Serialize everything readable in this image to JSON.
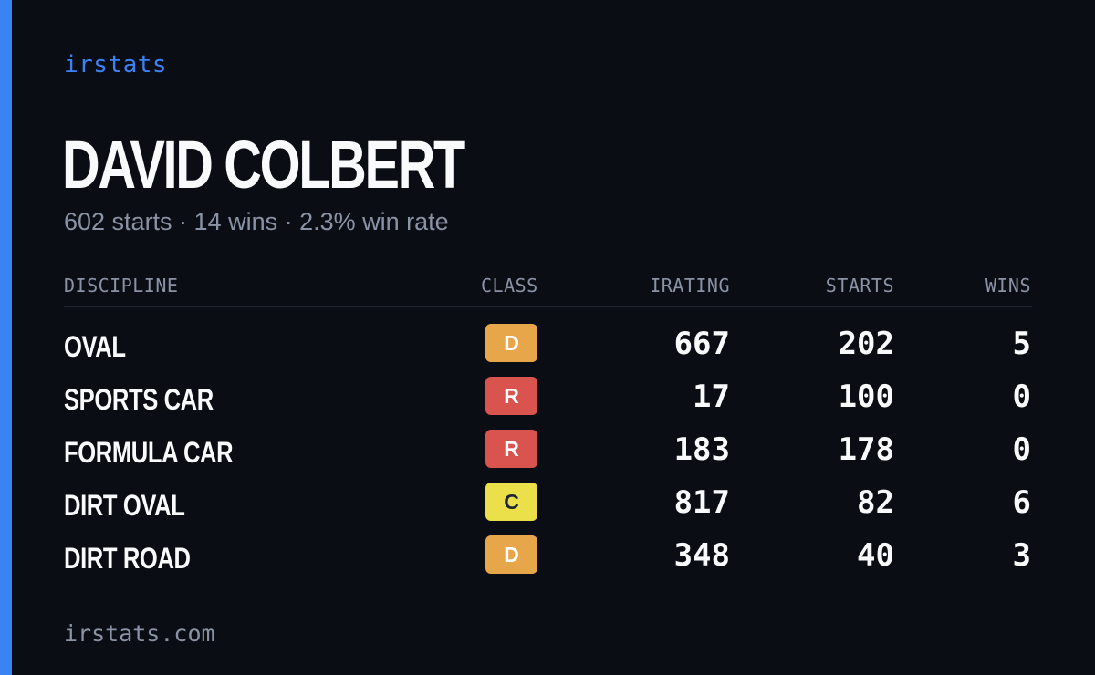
{
  "brand": "irstats",
  "driver": {
    "name": "DAVID COLBERT",
    "summary": "602 starts · 14 wins · 2.3% win rate"
  },
  "table": {
    "headers": {
      "discipline": "DISCIPLINE",
      "class": "CLASS",
      "irating": "IRATING",
      "starts": "STARTS",
      "wins": "WINS"
    },
    "rows": [
      {
        "discipline": "OVAL",
        "class": "D",
        "irating": "667",
        "starts": "202",
        "wins": "5"
      },
      {
        "discipline": "SPORTS CAR",
        "class": "R",
        "irating": "17",
        "starts": "100",
        "wins": "0"
      },
      {
        "discipline": "FORMULA CAR",
        "class": "R",
        "irating": "183",
        "starts": "178",
        "wins": "0"
      },
      {
        "discipline": "DIRT OVAL",
        "class": "C",
        "irating": "817",
        "starts": "82",
        "wins": "6"
      },
      {
        "discipline": "DIRT ROAD",
        "class": "D",
        "irating": "348",
        "starts": "40",
        "wins": "3"
      }
    ]
  },
  "class_colors": {
    "D": {
      "bg": "#e8a64a",
      "fg": "#ffffff"
    },
    "R": {
      "bg": "#d9534f",
      "fg": "#ffffff"
    },
    "C": {
      "bg": "#ebe04a",
      "fg": "#1f2430"
    }
  },
  "colors": {
    "accent": "#3b82f6",
    "background": "#0a0d14",
    "text": "#f8fafc",
    "muted": "#8a93a5"
  },
  "footer": "irstats.com"
}
